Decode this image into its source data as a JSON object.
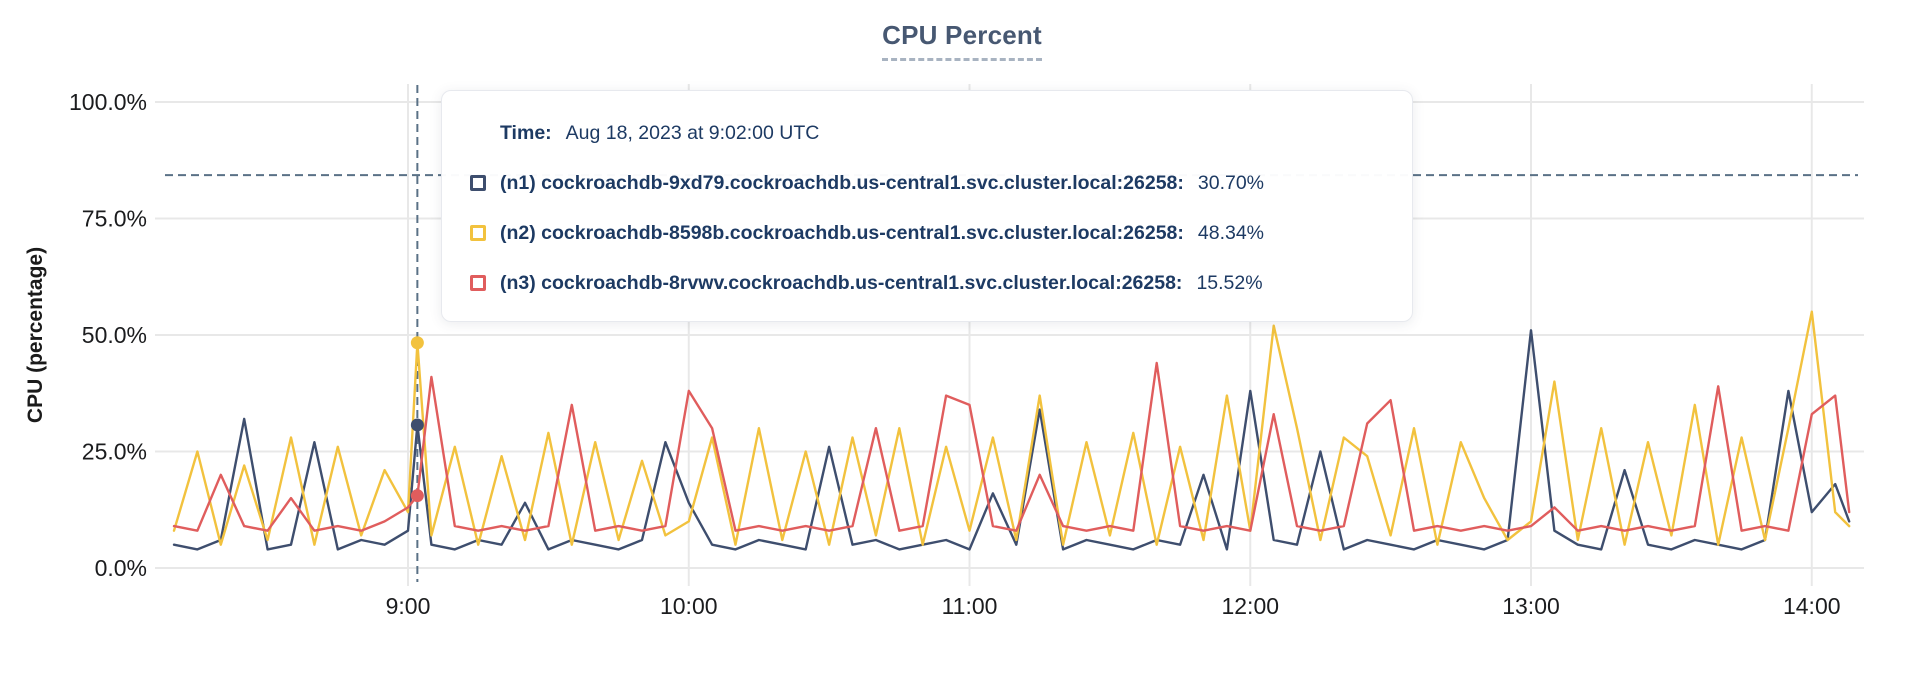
{
  "header": {
    "title": "CPU Percent"
  },
  "y_axis": {
    "title": "CPU (percentage)"
  },
  "tooltip": {
    "time_label": "Time:",
    "time_value": "Aug 18, 2023 at 9:02:00 UTC",
    "rows": [
      {
        "id": "n1",
        "label": "(n1) cockroachdb-9xd79.cockroachdb.us-central1.svc.cluster.local:26258:",
        "value": "30.70%",
        "color": "#3e4e6e"
      },
      {
        "id": "n2",
        "label": "(n2) cockroachdb-8598b.cockroachdb.us-central1.svc.cluster.local:26258:",
        "value": "48.34%",
        "color": "#f2c23e"
      },
      {
        "id": "n3",
        "label": "(n3) cockroachdb-8rvwv.cockroachdb.us-central1.svc.cluster.local:26258:",
        "value": "15.52%",
        "color": "#e05d5d"
      }
    ]
  },
  "colors": {
    "grid": "#e8e8e8",
    "crosshair": "#5a7186",
    "tick_text": "#1b1c1e",
    "title_text": "#475872",
    "tooltip_text": "#1d3a63"
  },
  "chart_data": {
    "type": "line",
    "title": "CPU Percent",
    "xlabel": "",
    "ylabel": "CPU (percentage)",
    "ylim": [
      0,
      100
    ],
    "grid": true,
    "legend_position": "tooltip-overlay",
    "y_ticks": [
      {
        "value": 0,
        "label": "0.0%"
      },
      {
        "value": 25,
        "label": "25.0%"
      },
      {
        "value": 50,
        "label": "50.0%"
      },
      {
        "value": 75,
        "label": "75.0%"
      },
      {
        "value": 100,
        "label": "100.0%"
      }
    ],
    "x_ticks": [
      {
        "minutes": 540,
        "label": "9:00"
      },
      {
        "minutes": 600,
        "label": "10:00"
      },
      {
        "minutes": 660,
        "label": "11:00"
      },
      {
        "minutes": 720,
        "label": "12:00"
      },
      {
        "minutes": 780,
        "label": "13:00"
      },
      {
        "minutes": 840,
        "label": "14:00"
      }
    ],
    "x_minutes": [
      490,
      495,
      500,
      505,
      510,
      515,
      520,
      525,
      530,
      535,
      540,
      542,
      545,
      550,
      555,
      560,
      565,
      570,
      575,
      580,
      585,
      590,
      595,
      600,
      605,
      610,
      615,
      620,
      625,
      630,
      635,
      640,
      645,
      650,
      655,
      660,
      665,
      670,
      675,
      680,
      685,
      690,
      695,
      700,
      705,
      710,
      715,
      720,
      725,
      730,
      735,
      740,
      745,
      750,
      755,
      760,
      765,
      770,
      775,
      780,
      785,
      790,
      795,
      800,
      805,
      810,
      815,
      820,
      825,
      830,
      835,
      840,
      845,
      848
    ],
    "series": [
      {
        "name": "(n1) cockroachdb-9xd79.cockroachdb.us-central1.svc.cluster.local:26258",
        "short": "n1",
        "color": "#3e4e6e",
        "values": [
          5,
          4,
          6,
          32,
          4,
          5,
          27,
          4,
          6,
          5,
          8,
          30.7,
          5,
          4,
          6,
          5,
          14,
          4,
          6,
          5,
          4,
          6,
          27,
          14,
          5,
          4,
          6,
          5,
          4,
          26,
          5,
          6,
          4,
          5,
          6,
          4,
          16,
          5,
          34,
          4,
          6,
          5,
          4,
          6,
          5,
          20,
          4,
          38,
          6,
          5,
          25,
          4,
          6,
          5,
          4,
          6,
          5,
          4,
          6,
          51,
          8,
          5,
          4,
          21,
          5,
          4,
          6,
          5,
          4,
          6,
          38,
          12,
          18,
          10
        ]
      },
      {
        "name": "(n2) cockroachdb-8598b.cockroachdb.us-central1.svc.cluster.local:26258",
        "short": "n2",
        "color": "#f2c23e",
        "values": [
          8,
          25,
          5,
          22,
          6,
          28,
          5,
          26,
          7,
          21,
          12,
          48.3,
          7,
          26,
          5,
          24,
          6,
          29,
          5,
          27,
          6,
          23,
          7,
          10,
          28,
          5,
          30,
          6,
          25,
          5,
          28,
          7,
          30,
          5,
          26,
          8,
          28,
          6,
          37,
          5,
          27,
          7,
          29,
          5,
          26,
          6,
          37,
          8,
          52,
          30,
          6,
          28,
          24,
          7,
          30,
          5,
          27,
          15,
          6,
          10,
          40,
          6,
          30,
          5,
          27,
          7,
          35,
          5,
          28,
          6,
          30,
          55,
          12,
          9
        ]
      },
      {
        "name": "(n3) cockroachdb-8rvwv.cockroachdb.us-central1.svc.cluster.local:26258",
        "short": "n3",
        "color": "#e05d5d",
        "values": [
          9,
          8,
          20,
          9,
          8,
          15,
          8,
          9,
          8,
          10,
          13,
          15.5,
          41,
          9,
          8,
          9,
          8,
          9,
          35,
          8,
          9,
          8,
          9,
          38,
          30,
          8,
          9,
          8,
          9,
          8,
          9,
          30,
          8,
          9,
          37,
          35,
          9,
          8,
          20,
          9,
          8,
          9,
          8,
          44,
          9,
          8,
          9,
          8,
          33,
          9,
          8,
          9,
          31,
          36,
          8,
          9,
          8,
          9,
          8,
          9,
          13,
          8,
          9,
          8,
          9,
          8,
          9,
          39,
          8,
          9,
          8,
          33,
          37,
          12
        ]
      }
    ],
    "hover": {
      "time_minutes": 542,
      "time_text": "Aug 18, 2023 at 9:02:00 UTC",
      "crosshair_y_percent": 84.3,
      "points": [
        {
          "series": "n1",
          "value": 30.7,
          "display": "30.70%"
        },
        {
          "series": "n2",
          "value": 48.34,
          "display": "48.34%"
        },
        {
          "series": "n3",
          "value": 15.52,
          "display": "15.52%"
        }
      ]
    }
  }
}
